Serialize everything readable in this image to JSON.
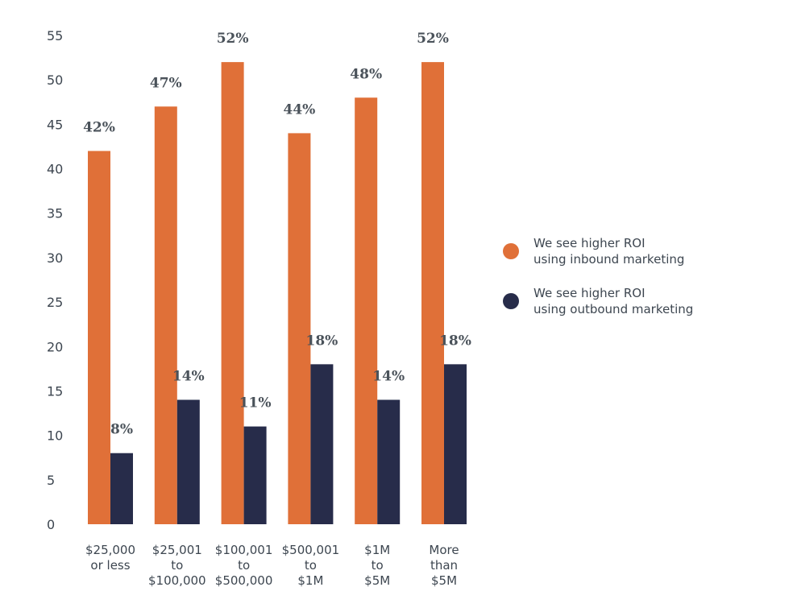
{
  "chart_data": {
    "type": "bar",
    "categories": [
      [
        "$25,000",
        "or less"
      ],
      [
        "$25,001",
        "to",
        "$100,000"
      ],
      [
        "$100,001",
        "to",
        "$500,000"
      ],
      [
        "$500,001",
        "to",
        "$1M"
      ],
      [
        "$1M",
        "to",
        "$5M"
      ],
      [
        "More",
        "than",
        "$5M"
      ]
    ],
    "series": [
      {
        "name": [
          "We see higher ROI",
          "using inbound marketing"
        ],
        "color": "#e07038",
        "values": [
          42,
          47,
          52,
          44,
          48,
          52
        ],
        "labels": [
          "42%",
          "47%",
          "52%",
          "44%",
          "48%",
          "52%"
        ]
      },
      {
        "name": [
          "We see higher ROI",
          "using outbound marketing"
        ],
        "color": "#272c4a",
        "values": [
          8,
          14,
          11,
          18,
          14,
          18
        ],
        "labels": [
          "8%",
          "14%",
          "11%",
          "18%",
          "14%",
          "18%"
        ]
      }
    ],
    "yticks": [
      0,
      5,
      10,
      15,
      20,
      25,
      30,
      35,
      40,
      45,
      50,
      55
    ],
    "ylim": [
      0,
      55
    ],
    "title": "",
    "xlabel": "",
    "ylabel": "",
    "grid": false,
    "legend_position": "right"
  }
}
